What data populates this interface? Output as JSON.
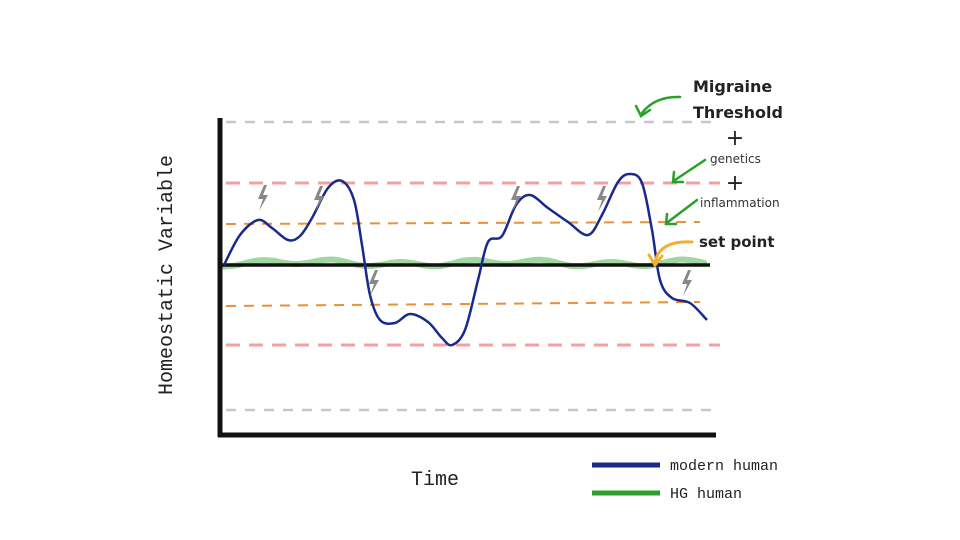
{
  "axes": {
    "y_label": "Homeostatic Variable",
    "x_label": "Time"
  },
  "annotations": {
    "migraine_threshold": [
      "Migraine",
      "Threshold"
    ],
    "plus": [
      "+",
      "+"
    ],
    "genetics": "genetics",
    "inflammation": "inflammation",
    "set_point": "set point"
  },
  "legend": [
    {
      "label": "modern human"
    },
    {
      "label": "HG human"
    }
  ]
}
